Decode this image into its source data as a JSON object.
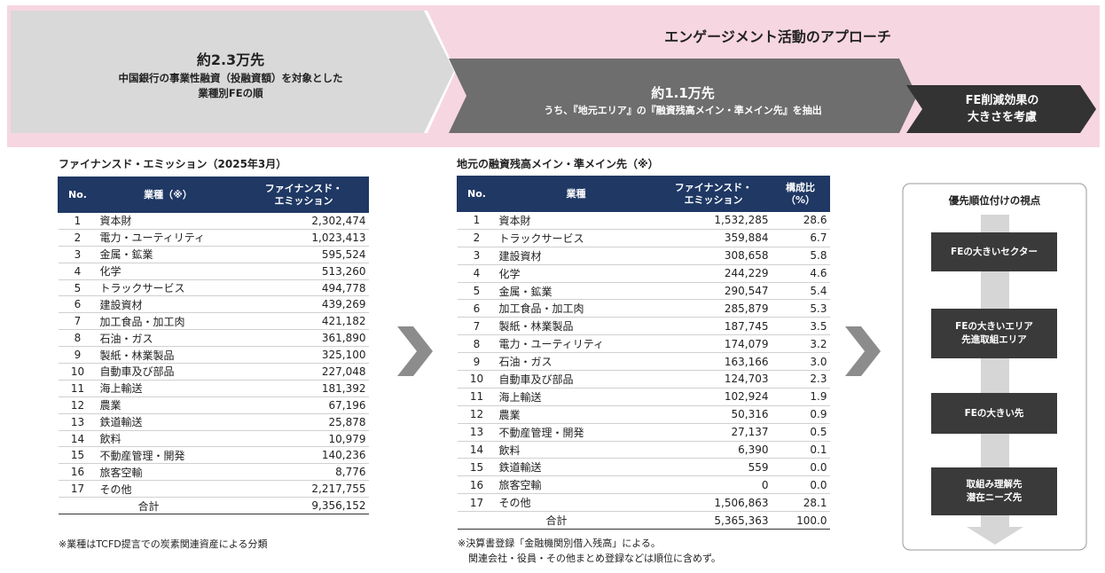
{
  "banner": {
    "title": "エンゲージメント活動のアプローチ",
    "step1": {
      "amount": "約2.3万先",
      "lines": [
        "中国銀行の事業性融資（投融資額）を対象とした",
        "業種別FEの順"
      ]
    },
    "step2": {
      "amount": "約1.1万先",
      "lines": [
        "うち、『地元エリア』の『融資残高メイン・準メイン先』を抽出"
      ]
    },
    "step3": {
      "lines": [
        "FE削減効果の",
        "大きさを考慮"
      ]
    }
  },
  "table1": {
    "title": "ファイナンスド・エミッション（2025年3月）",
    "headers": [
      [
        "No."
      ],
      [
        "業種（※）"
      ],
      [
        "ファイナンスド・",
        "エミッション"
      ]
    ],
    "rows": [
      [
        "1",
        "資本財",
        "2,302,474"
      ],
      [
        "2",
        "電力・ユーティリティ",
        "1,023,413"
      ],
      [
        "3",
        "金属・鉱業",
        "595,524"
      ],
      [
        "4",
        "化学",
        "513,260"
      ],
      [
        "5",
        "トラックサービス",
        "494,778"
      ],
      [
        "6",
        "建設資材",
        "439,269"
      ],
      [
        "7",
        "加工食品・加工肉",
        "421,182"
      ],
      [
        "8",
        "石油・ガス",
        "361,890"
      ],
      [
        "9",
        "製紙・林業製品",
        "325,100"
      ],
      [
        "10",
        "自動車及び部品",
        "227,048"
      ],
      [
        "11",
        "海上輸送",
        "181,392"
      ],
      [
        "12",
        "農業",
        "67,196"
      ],
      [
        "13",
        "鉄道輸送",
        "25,878"
      ],
      [
        "14",
        "飲料",
        "10,979"
      ],
      [
        "15",
        "不動産管理・開発",
        "140,236"
      ],
      [
        "16",
        "旅客空輸",
        "8,776"
      ],
      [
        "17",
        "その他",
        "2,217,755"
      ]
    ],
    "total": [
      "合計",
      "9,356,152"
    ],
    "notes": [
      "※業種はTCFD提言での炭素関連資産による分類"
    ]
  },
  "table2": {
    "title": "地元の融資残高メイン・準メイン先（※）",
    "headers": [
      [
        "No."
      ],
      [
        "業種"
      ],
      [
        "ファイナンスド・",
        "エミッション"
      ],
      [
        "構成比",
        "（%）"
      ]
    ],
    "rows": [
      [
        "1",
        "資本財",
        "1,532,285",
        "28.6"
      ],
      [
        "2",
        "トラックサービス",
        "359,884",
        "6.7"
      ],
      [
        "3",
        "建設資材",
        "308,658",
        "5.8"
      ],
      [
        "4",
        "化学",
        "244,229",
        "4.6"
      ],
      [
        "5",
        "金属・鉱業",
        "290,547",
        "5.4"
      ],
      [
        "6",
        "加工食品・加工肉",
        "285,879",
        "5.3"
      ],
      [
        "7",
        "製紙・林業製品",
        "187,745",
        "3.5"
      ],
      [
        "8",
        "電力・ユーティリティ",
        "174,079",
        "3.2"
      ],
      [
        "9",
        "石油・ガス",
        "163,166",
        "3.0"
      ],
      [
        "10",
        "自動車及び部品",
        "124,703",
        "2.3"
      ],
      [
        "11",
        "海上輸送",
        "102,924",
        "1.9"
      ],
      [
        "12",
        "農業",
        "50,316",
        "0.9"
      ],
      [
        "13",
        "不動産管理・開発",
        "27,137",
        "0.5"
      ],
      [
        "14",
        "飲料",
        "6,390",
        "0.1"
      ],
      [
        "15",
        "鉄道輸送",
        "559",
        "0.0"
      ],
      [
        "16",
        "旅客空輸",
        "0",
        "0.0"
      ],
      [
        "17",
        "その他",
        "1,506,863",
        "28.1"
      ]
    ],
    "total": [
      "合計",
      "5,365,363",
      "100.0"
    ],
    "notes": [
      "※決算書登録「金融機関別借入残高」による。",
      "関連会社・役員・その他まとめ登録などは順位に含めず。"
    ]
  },
  "priority": {
    "title": "優先順位付けの視点",
    "items": [
      [
        "FEの大きいセクター"
      ],
      [
        "FEの大きいエリア",
        "先進取組エリア"
      ],
      [
        "FEの大きい先"
      ],
      [
        "取組み理解先",
        "潜在ニーズ先"
      ]
    ]
  }
}
